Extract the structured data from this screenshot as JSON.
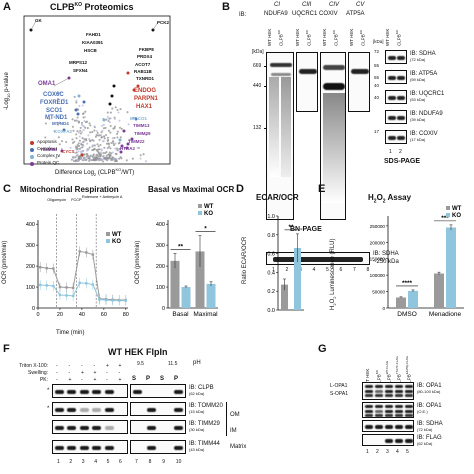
{
  "colors": {
    "wt_gray": "#9a9a9a",
    "ko_blue": "#8fc6dd",
    "apoptosis": "#c0392b",
    "complex_i": "#4a6fb3",
    "complex_iv": "#7fb3d5",
    "protein_qc": "#7d3c98",
    "other_points": "#8f8f8f"
  },
  "panel_a": {
    "letter": "A",
    "title": "CLPB",
    "title_sup": "KO",
    "title_rest": " Proteomics",
    "ylabel": "-Log10 p-value",
    "ylabel_main": "-Log",
    "ylabel_sub": "10",
    "ylabel_rest": " p-value",
    "xlabel": "Difference Log2 (CLPBKO/WT)",
    "xlabel_main": "Difference Log",
    "xlabel_sub": "2",
    "xlabel_mid": " (CLPB",
    "xlabel_sup": "KO",
    "xlabel_end": "/WT)",
    "labels": [
      {
        "text": "GK",
        "color": "#111"
      },
      {
        "text": "PCK2",
        "color": "#111"
      },
      {
        "text": "FAHD1",
        "color": "#111"
      },
      {
        "text": "KIAA0391",
        "color": "#111"
      },
      {
        "text": "HSCB",
        "color": "#111"
      },
      {
        "text": "MRPS12",
        "color": "#111"
      },
      {
        "text": "SFXN4",
        "color": "#111"
      },
      {
        "text": "OMA1",
        "color": "#7d3c98"
      },
      {
        "text": "COX6C",
        "color": "#4a6fb3"
      },
      {
        "text": "FOXRED1",
        "color": "#4a6fb3"
      },
      {
        "text": "SCO1",
        "color": "#4a6fb3"
      },
      {
        "text": "MT-ND1",
        "color": "#4a6fb3"
      },
      {
        "text": "MT-ND4",
        "color": "#4a6fb3"
      },
      {
        "text": "COX7A2",
        "color": "#7fb3d5"
      },
      {
        "text": "TIMM8B",
        "color": "#7d3c98"
      },
      {
        "text": "CYCS",
        "color": "#c0392b"
      },
      {
        "text": "FKBP8",
        "color": "#111"
      },
      {
        "text": "PRDX4",
        "color": "#111"
      },
      {
        "text": "ACOT7",
        "color": "#111"
      },
      {
        "text": "RAB11B",
        "color": "#111"
      },
      {
        "text": "TXNRD1",
        "color": "#111"
      },
      {
        "text": "ENDOG",
        "color": "#c0392b"
      },
      {
        "text": "PARPN1",
        "color": "#c0392b"
      },
      {
        "text": "HAX1",
        "color": "#c0392b"
      },
      {
        "text": "TIMM13",
        "color": "#7d3c98"
      },
      {
        "text": "TIMM29",
        "color": "#7d3c98"
      },
      {
        "text": "TIMM22",
        "color": "#7d3c98"
      },
      {
        "text": "HTRA2",
        "color": "#7d3c98"
      },
      {
        "text": "MT-CO1",
        "color": "#7fb3d5"
      }
    ],
    "legend": [
      {
        "label": "Apoptosis",
        "color": "#c0392b"
      },
      {
        "label": "Complex I",
        "color": "#4a6fb3"
      },
      {
        "label": "Complex IV",
        "color": "#7fb3d5"
      },
      {
        "label": "Protein QC",
        "color": "#7d3c98"
      }
    ]
  },
  "panel_b": {
    "letter": "B",
    "ib_label": "IB:",
    "complexes": [
      "CI",
      "CIII",
      "CIV",
      "CV"
    ],
    "antibodies": [
      "NDUFA9",
      "UQCRC1",
      "COXIV",
      "ATP5A"
    ],
    "lane_wt": "WT HEK",
    "lane_ko": "CLPBKO",
    "lane_ko_main": "CLPB",
    "lane_ko_sup": "KO",
    "kda": "[kDa]",
    "markers": [
      "669",
      "440",
      "132"
    ],
    "marker_kda": [
      669,
      440,
      132
    ],
    "bn_label": "BN-PAGE",
    "sdha_ib": "IB: SDHA",
    "sdha_size": "~250 kDa",
    "lane_numbers": [
      "1",
      "2",
      "3",
      "4",
      "5",
      "6",
      "7",
      "8"
    ],
    "sds_label": "SDS-PAGE",
    "sds_lanes": [
      "WT HEK",
      "CLPBKO"
    ],
    "sds_markers": [
      "72",
      "55",
      "55",
      "40",
      "40",
      "17"
    ],
    "sds_marker_kda": [
      72,
      55,
      55,
      40,
      40,
      17
    ],
    "sds_ibs": [
      {
        "name": "IB: SDHA",
        "size": "(72 kDa)"
      },
      {
        "name": "IB: ATP5A",
        "size": "(59 kDa)"
      },
      {
        "name": "IB: UQCRC1",
        "size": "(53 kDa)"
      },
      {
        "name": "IB: NDUFA9",
        "size": "(39 kDa)"
      },
      {
        "name": "IB: COXIV",
        "size": "(17 kDa)"
      }
    ],
    "sds_lane_numbers": [
      "1",
      "2"
    ]
  },
  "panel_c": {
    "letter": "C",
    "title": "Mitochondrial Respiration",
    "ylabel": "OCR (pmol/min)",
    "xlabel": "Time (min)",
    "injections": [
      "Oligomycin",
      "FCCP",
      "Rotenone + Antimycin A"
    ],
    "legend": [
      "WT",
      "KO"
    ],
    "chart_data": {
      "type": "line",
      "x": [
        2,
        8,
        14,
        20,
        26,
        32,
        38,
        44,
        50,
        56,
        62,
        68,
        74,
        80
      ],
      "xticks": [
        0,
        20,
        40,
        60,
        80
      ],
      "yticks": [
        0,
        100,
        200,
        300,
        400
      ],
      "ylim": [
        0,
        420
      ],
      "xlim": [
        0,
        82
      ],
      "series": [
        {
          "name": "WT",
          "values": [
            195,
            190,
            188,
            100,
            98,
            96,
            270,
            265,
            255,
            45,
            42,
            40,
            38,
            38
          ]
        },
        {
          "name": "KO",
          "values": [
            110,
            108,
            105,
            62,
            60,
            58,
            120,
            118,
            112,
            40,
            38,
            36,
            35,
            35
          ]
        }
      ]
    }
  },
  "panel_c2": {
    "title": "Basal vs Maximal OCR",
    "ylabel": "OCR (pmol/min)",
    "legend": [
      "WT",
      "KO"
    ],
    "chart_data": {
      "type": "bar",
      "categories": [
        "Basal",
        "Maximal"
      ],
      "yticks": [
        0,
        100,
        200,
        300,
        400
      ],
      "ylim": [
        0,
        420
      ],
      "series": [
        {
          "name": "WT",
          "values": [
            225,
            270
          ],
          "errors": [
            35,
            75
          ]
        },
        {
          "name": "KO",
          "values": [
            100,
            115
          ],
          "errors": [
            5,
            10
          ]
        }
      ],
      "significance": [
        "**",
        "*"
      ]
    }
  },
  "panel_d": {
    "letter": "D",
    "title": "ECAR/OCR",
    "ylabel": "Ratio ECAR/OCR",
    "chart_data": {
      "type": "bar",
      "categories": [
        "WT",
        "KO"
      ],
      "values": [
        0.27,
        0.66
      ],
      "errors": [
        0.06,
        0.15
      ],
      "yticks": [
        0.0,
        0.2,
        0.4,
        0.6,
        0.8,
        1.0
      ],
      "ylim": [
        0,
        1.0
      ],
      "significance": "**"
    }
  },
  "panel_e": {
    "letter": "E",
    "title": "H2O2 Assay",
    "title_a": "H",
    "title_b": "2",
    "title_c": "O",
    "title_d": "2",
    "title_e": " Assay",
    "ylabel": "H2O2 Luminescence (RLU)",
    "ylabel_a": "H",
    "ylabel_b": "2",
    "ylabel_c": "O",
    "ylabel_d": "2",
    "ylabel_e": " Luminescence (RLU)",
    "legend": [
      "WT",
      "KO"
    ],
    "chart_data": {
      "type": "bar",
      "categories": [
        "DMSO",
        "Menadione"
      ],
      "ytick_labels": [
        "0",
        "50000",
        "100000",
        "150000",
        "200000",
        "250000"
      ],
      "yticks": [
        0,
        50000,
        100000,
        150000,
        200000,
        250000
      ],
      "ylim": [
        0,
        280000
      ],
      "series": [
        {
          "name": "WT",
          "values": [
            32000,
            105000
          ],
          "errors": [
            2000,
            4000
          ]
        },
        {
          "name": "KO",
          "values": [
            52000,
            245000
          ],
          "errors": [
            3000,
            8000
          ]
        }
      ],
      "significance": [
        "****",
        "***"
      ]
    }
  },
  "panel_f": {
    "letter": "F",
    "title": "WT HEK FlpIn",
    "cond_labels": [
      "Triton X-100:",
      "Swelling:",
      "PK:"
    ],
    "cond_rows": [
      [
        "-",
        "-",
        "-",
        "-",
        "+",
        "+"
      ],
      [
        "-",
        "-",
        "+",
        "+",
        "-",
        "-"
      ],
      [
        "-",
        "+",
        "-",
        "+",
        "-",
        "+"
      ]
    ],
    "ph_label": "pH",
    "ph_values": [
      "9.5",
      "11.5"
    ],
    "sp": [
      "S",
      "P",
      "S",
      "P"
    ],
    "ibs": [
      {
        "name": "IB: CLPB",
        "size": "(62 kDa)"
      },
      {
        "name": "IB: TOMM20",
        "size": "(15 kDa)"
      },
      {
        "name": "IB: TIMM29",
        "size": "(30 kDa)"
      },
      {
        "name": "IB: TIMM44",
        "size": "(43 kDa)"
      }
    ],
    "groups": [
      "OM",
      "IM",
      "Matrix"
    ],
    "lane_numbers": [
      "1",
      "2",
      "3",
      "4",
      "5",
      "6",
      "7",
      "8",
      "9",
      "10"
    ]
  },
  "panel_g": {
    "letter": "G",
    "lanes": [
      {
        "main": "WT HEK",
        "sup": ""
      },
      {
        "main": "CLPB",
        "sup": "KO"
      },
      {
        "main": "CLPB",
        "sup": "WT-FLAG"
      },
      {
        "main": "CLPB",
        "sup": "Y617C-FLAG"
      },
      {
        "main": "CLPB",
        "sup": "E425Q-FLAG"
      }
    ],
    "opa_forms": [
      "L-OPA1",
      "S-OPA1"
    ],
    "ibs": [
      {
        "name": "IB: OPA1",
        "size": "(80-100 kDa)"
      },
      {
        "name": "IB: OPA1",
        "size": "(O.E.)"
      },
      {
        "name": "IB: SDHA",
        "size": "(72 kDa)"
      },
      {
        "name": "IB: FLAG",
        "size": "(62 kDa)"
      }
    ],
    "lane_numbers": [
      "1",
      "2",
      "3",
      "4",
      "5"
    ]
  }
}
